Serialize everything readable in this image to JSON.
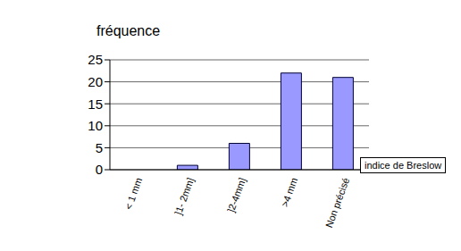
{
  "chart_data": {
    "type": "bar",
    "categories": [
      "< 1 mm",
      "]1- 2mm]",
      "]2-4mm]",
      ">4 mm",
      "Non précisé"
    ],
    "values": [
      0,
      1,
      6,
      22,
      21
    ],
    "color": "#9999ff",
    "y_label": "fréquence",
    "x_label": "indice de Breslow",
    "ylim": [
      0,
      25
    ],
    "yticks": [
      0,
      5,
      10,
      15,
      20,
      25
    ],
    "grid": true
  }
}
